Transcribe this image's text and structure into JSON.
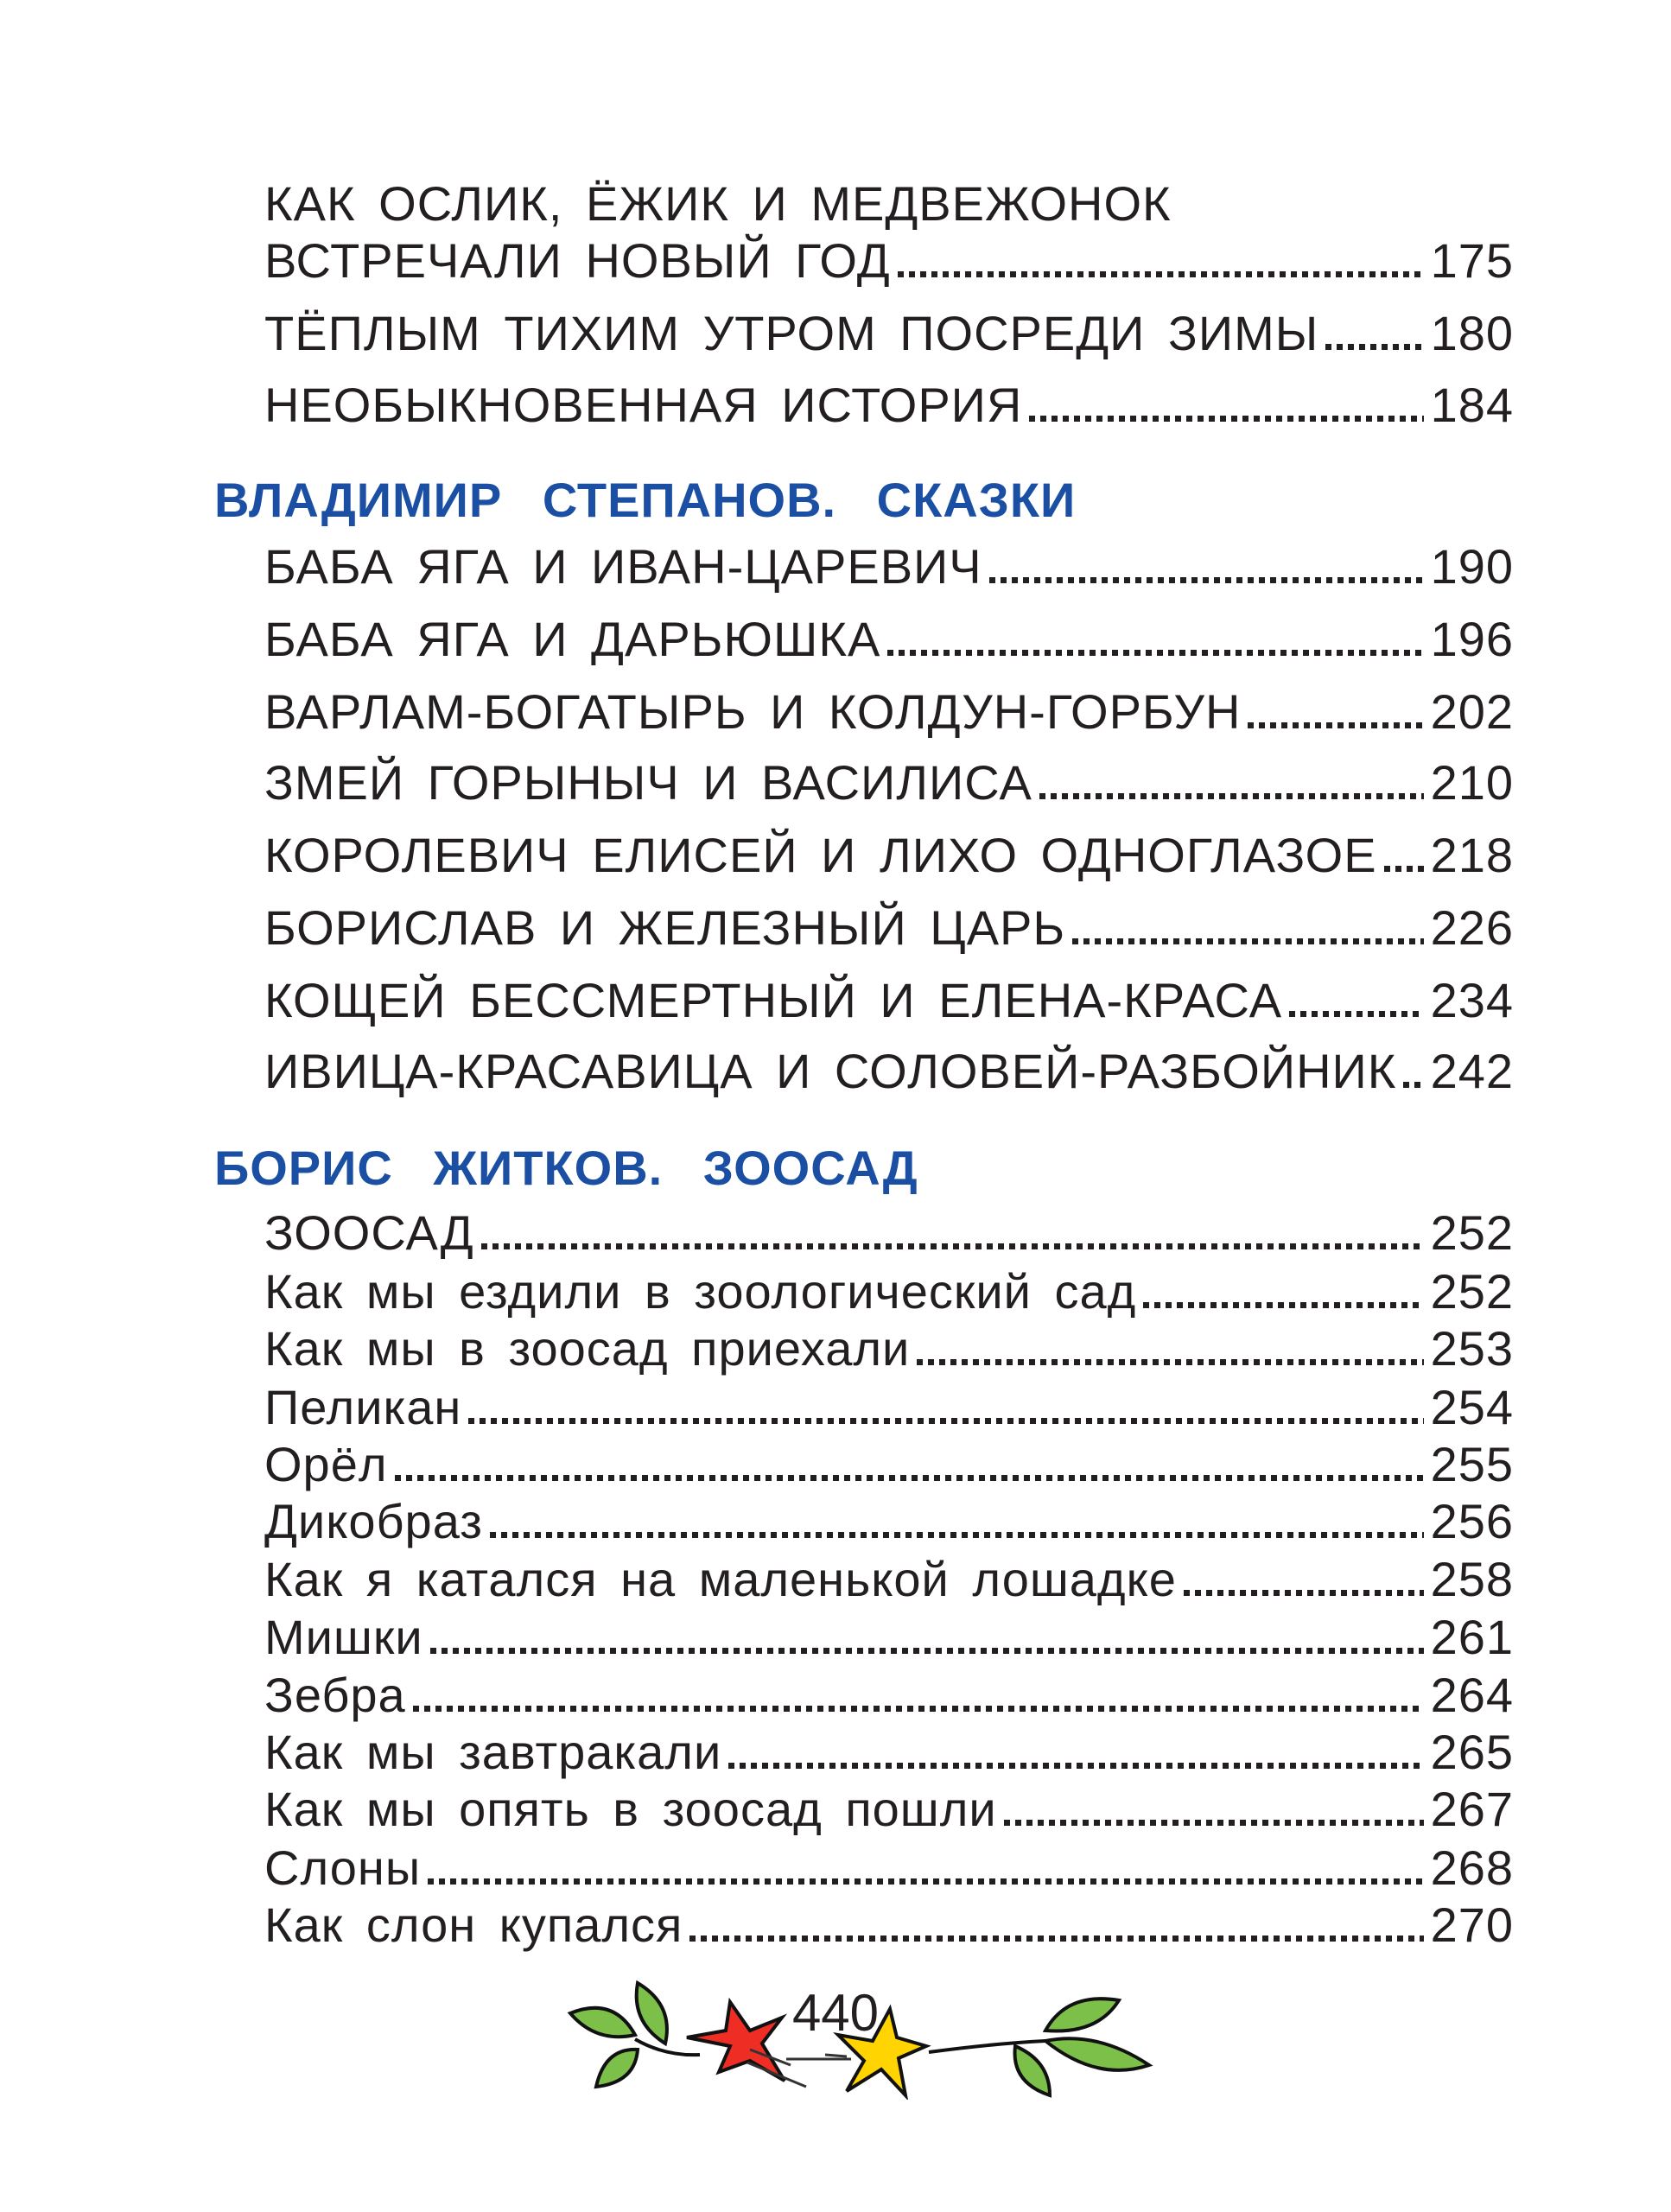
{
  "sections": [
    {
      "header": "",
      "entries": [
        {
          "title": "КАК ОСЛИК, ЁЖИК И МЕДВЕЖОНОК",
          "page": ""
        },
        {
          "title": "ВСТРЕЧАЛИ НОВЫЙ ГОД",
          "page": "175"
        },
        {
          "title": "ТЁПЛЫМ ТИХИМ УТРОМ ПОСРЕДИ ЗИМЫ",
          "page": "180"
        },
        {
          "title": "НЕОБЫКНОВЕННАЯ ИСТОРИЯ",
          "page": "184"
        }
      ]
    },
    {
      "header": "ВЛАДИМИР СТЕПАНОВ. СКАЗКИ",
      "entries": [
        {
          "title": "БАБА ЯГА И ИВАН-ЦАРЕВИЧ",
          "page": "190"
        },
        {
          "title": "БАБА ЯГА И ДАРЬЮШКА",
          "page": "196"
        },
        {
          "title": "ВАРЛАМ-БОГАТЫРЬ И КОЛДУН-ГОРБУН",
          "page": "202"
        },
        {
          "title": "ЗМЕЙ ГОРЫНЫЧ И ВАСИЛИСА",
          "page": "210"
        },
        {
          "title": "КОРОЛЕВИЧ ЕЛИСЕЙ И ЛИХО ОДНОГЛАЗОЕ",
          "page": "218"
        },
        {
          "title": "БОРИСЛАВ И ЖЕЛЕЗНЫЙ ЦАРЬ",
          "page": "226"
        },
        {
          "title": "КОЩЕЙ БЕССМЕРТНЫЙ И ЕЛЕНА-КРАСА",
          "page": "234"
        },
        {
          "title": "ИВИЦА-КРАСАВИЦА И СОЛОВЕЙ-РАЗБОЙНИК",
          "page": "242"
        }
      ]
    },
    {
      "header": "БОРИС ЖИТКОВ. ЗООСАД",
      "entries": [
        {
          "title": "ЗООСАД",
          "page": "252"
        },
        {
          "title": "Как мы ездили в зоологический сад",
          "page": "252"
        },
        {
          "title": "Как мы в зоосад приехали",
          "page": "253"
        },
        {
          "title": "Пеликан",
          "page": "254"
        },
        {
          "title": "Орёл",
          "page": "255"
        },
        {
          "title": "Дикобраз",
          "page": "256"
        },
        {
          "title": "Как я катался на маленькой лошадке",
          "page": "258"
        },
        {
          "title": "Мишки",
          "page": "261"
        },
        {
          "title": "Зебра",
          "page": "264"
        },
        {
          "title": "Как мы завтракали",
          "page": "265"
        },
        {
          "title": "Как мы опять в зоосад пошли",
          "page": "267"
        },
        {
          "title": "Слоны",
          "page": "268"
        },
        {
          "title": "Как слон купался",
          "page": "270"
        }
      ]
    }
  ],
  "page_number": "440",
  "colors": {
    "header": "#1b4fa3",
    "text": "#231f20",
    "leaf": "#7cc04a",
    "star_red": "#ee2e24",
    "star_yellow": "#ffd400"
  }
}
